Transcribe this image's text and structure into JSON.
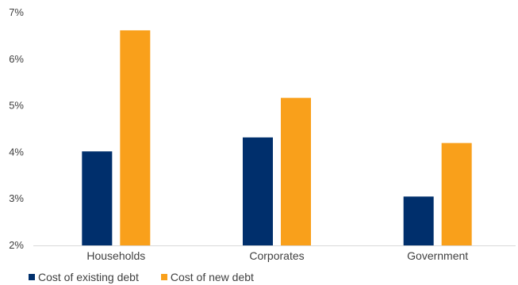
{
  "chart_data": {
    "type": "bar",
    "categories": [
      "Households",
      "Corporates",
      "Government"
    ],
    "series": [
      {
        "name": "Cost of existing debt",
        "values": [
          4.02,
          4.32,
          3.05
        ],
        "color": "#002F6C"
      },
      {
        "name": "Cost of new debt",
        "values": [
          6.62,
          5.17,
          4.2
        ],
        "color": "#F9A01B"
      }
    ],
    "ylim": [
      2,
      7
    ],
    "yticks": [
      "2%",
      "3%",
      "4%",
      "5%",
      "6%",
      "7%"
    ],
    "ytick_values": [
      2,
      3,
      4,
      5,
      6,
      7
    ],
    "grid": false,
    "legend_position": "bottom-left",
    "title": "",
    "xlabel": "",
    "ylabel": ""
  }
}
